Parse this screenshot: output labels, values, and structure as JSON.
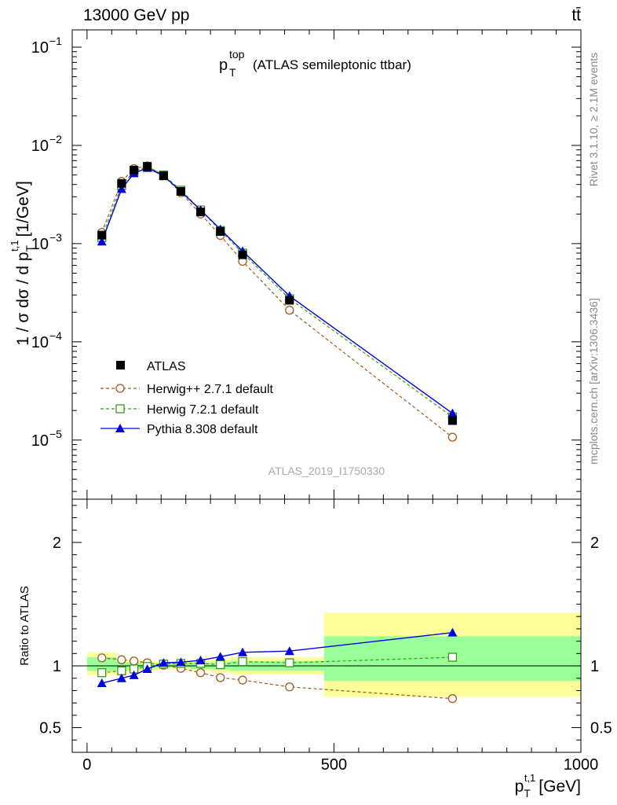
{
  "header": {
    "energy_label": "13000 GeV pp",
    "process_label": "tt̄"
  },
  "side_labels": {
    "rivet": "Rivet 3.1.10, ≥ 2.1M events",
    "mcplots": "mcplots.cern.ch [arXiv:1306.3436]"
  },
  "chart_data": [
    {
      "type": "line",
      "panel": "main",
      "title": "(ATLAS semileptonic ttbar)",
      "title_symbol": {
        "base": "p",
        "sub": "T",
        "sup": "top"
      },
      "watermark": "ATLAS_2019_I1750330",
      "ylabel_text": "1 / σ dσ / d p",
      "ylabel_sub": "T",
      "ylabel_sup": "t,1",
      "ylabel_unit": "[1/GeV]",
      "yscale": "log",
      "xlim": [
        -30,
        1000
      ],
      "ylim": [
        2.5e-06,
        0.15
      ],
      "yticks": [
        {
          "value": 0.1,
          "mant": "10",
          "exp": "−1"
        },
        {
          "value": 0.01,
          "mant": "10",
          "exp": "−2"
        },
        {
          "value": 0.001,
          "mant": "10",
          "exp": "−3"
        },
        {
          "value": 0.0001,
          "mant": "10",
          "exp": "−4"
        },
        {
          "value": 1e-05,
          "mant": "10",
          "exp": "−5"
        }
      ],
      "x": [
        30,
        70,
        95,
        122,
        155,
        190,
        230,
        270,
        315,
        410,
        740
      ],
      "series": [
        {
          "name": "ATLAS",
          "color": "#000000",
          "marker": "square",
          "values": [
            0.00122,
            0.0041,
            0.0056,
            0.0061,
            0.0049,
            0.0034,
            0.0021,
            0.00133,
            0.00077,
            0.000265,
            1.58e-05
          ]
        },
        {
          "name": "Herwig++ 2.7.1 default",
          "color": "#a05a1a",
          "marker": "circle",
          "values": [
            0.0013,
            0.0043,
            0.0058,
            0.0062,
            0.0049,
            0.0033,
            0.002,
            0.00121,
            0.00066,
            0.00021,
            1.07e-05
          ]
        },
        {
          "name": "Herwig 7.2.1 default",
          "color": "#3a9a1a",
          "marker": "open-square",
          "values": [
            0.00115,
            0.0039,
            0.0054,
            0.0061,
            0.005,
            0.0035,
            0.0022,
            0.00136,
            0.0008,
            0.000275,
            1.72e-05
          ]
        },
        {
          "name": "Pythia 8.308 default",
          "color": "#0000e0",
          "marker": "triangle",
          "values": [
            0.00105,
            0.0036,
            0.0052,
            0.0059,
            0.0049,
            0.0034,
            0.0022,
            0.0014,
            0.00084,
            0.000293,
            1.87e-05
          ]
        }
      ]
    },
    {
      "type": "line",
      "panel": "ratio",
      "ylabel": "Ratio to ATLAS",
      "xlabel_text": "p",
      "xlabel_sub": "T",
      "xlabel_sup": "t,1",
      "xlabel_unit": "[GeV]",
      "xlim": [
        -30,
        1000
      ],
      "ylim": [
        0.3,
        2.35
      ],
      "xticks": [
        {
          "value": 0,
          "label": "0"
        },
        {
          "value": 500,
          "label": "500"
        },
        {
          "value": 1000,
          "label": "1000"
        }
      ],
      "yticks": [
        {
          "value": 0.5,
          "label": "0.5"
        },
        {
          "value": 1,
          "label": "1"
        },
        {
          "value": 2,
          "label": "2"
        }
      ],
      "bins": [
        0,
        60,
        80,
        110,
        140,
        170,
        210,
        250,
        290,
        350,
        480,
        1000
      ],
      "band_stat": [
        [
          0.96,
          1.07
        ],
        [
          0.975,
          1.03
        ],
        [
          0.975,
          1.03
        ],
        [
          0.98,
          1.02
        ],
        [
          0.985,
          1.02
        ],
        [
          0.985,
          1.025
        ],
        [
          0.975,
          1.025
        ],
        [
          0.97,
          1.03
        ],
        [
          0.96,
          1.04
        ],
        [
          0.96,
          1.04
        ],
        [
          0.88,
          1.24
        ]
      ],
      "band_total": [
        [
          0.925,
          1.11
        ],
        [
          0.95,
          1.05
        ],
        [
          0.95,
          1.05
        ],
        [
          0.96,
          1.04
        ],
        [
          0.97,
          1.035
        ],
        [
          0.97,
          1.04
        ],
        [
          0.96,
          1.045
        ],
        [
          0.945,
          1.055
        ],
        [
          0.93,
          1.07
        ],
        [
          0.93,
          1.07
        ],
        [
          0.75,
          1.43
        ]
      ],
      "x": [
        30,
        70,
        95,
        122,
        155,
        190,
        230,
        270,
        315,
        410,
        740
      ],
      "series": [
        {
          "name": "Herwig++ 2.7.1 default",
          "color": "#a05a1a",
          "marker": "circle",
          "values": [
            1.065,
            1.05,
            1.04,
            1.025,
            1.005,
            0.98,
            0.945,
            0.905,
            0.885,
            0.83,
            0.735
          ]
        },
        {
          "name": "Herwig 7.2.1 default",
          "color": "#3a9a1a",
          "marker": "open-square",
          "values": [
            0.945,
            0.96,
            0.975,
            0.995,
            1.015,
            1.02,
            1.02,
            1.01,
            1.035,
            1.025,
            1.07
          ]
        },
        {
          "name": "Pythia 8.308 default",
          "color": "#0000e0",
          "marker": "triangle",
          "values": [
            0.86,
            0.9,
            0.925,
            0.975,
            1.025,
            1.03,
            1.045,
            1.075,
            1.11,
            1.12,
            1.27
          ]
        }
      ]
    }
  ]
}
